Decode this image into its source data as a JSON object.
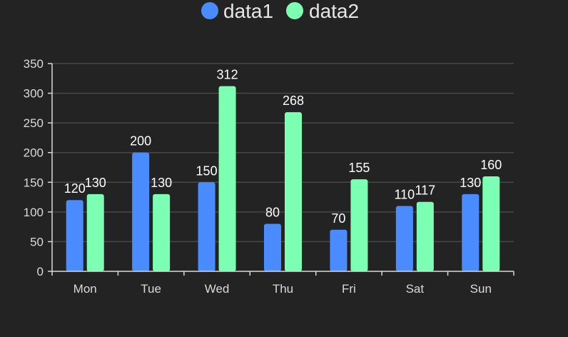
{
  "chart_data": {
    "type": "bar",
    "categories": [
      "Mon",
      "Tue",
      "Wed",
      "Thu",
      "Fri",
      "Sat",
      "Sun"
    ],
    "series": [
      {
        "name": "data1",
        "values": [
          120,
          200,
          150,
          80,
          70,
          110,
          130
        ],
        "color": "#4a8cff"
      },
      {
        "name": "data2",
        "values": [
          130,
          130,
          312,
          268,
          155,
          117,
          160
        ],
        "color": "#7cffb2"
      }
    ],
    "y_ticks": [
      "0",
      "50",
      "100",
      "150",
      "200",
      "250",
      "300",
      "350"
    ],
    "ylim": [
      0,
      350
    ],
    "grid": true,
    "legend": "top-center",
    "colors": {
      "background": "#232323",
      "grid": "#484848",
      "axis": "#d9d9d9",
      "text": "#d9d9d9"
    }
  }
}
